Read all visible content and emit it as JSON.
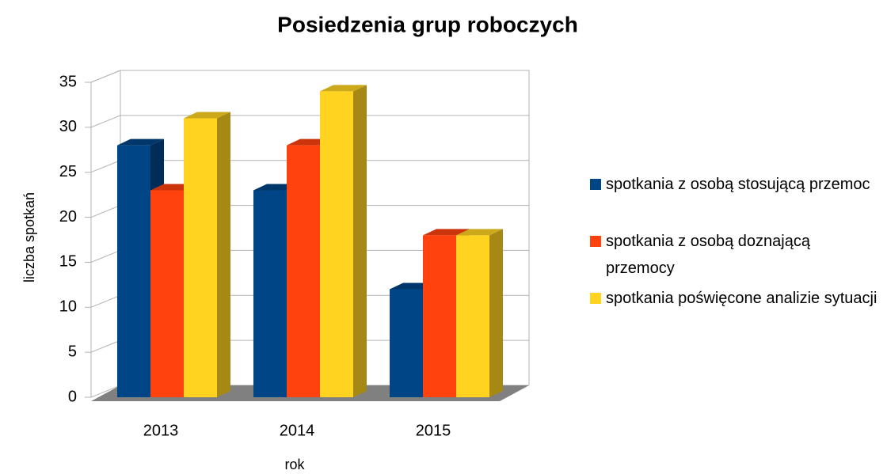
{
  "chart_data": {
    "type": "bar3d",
    "title": "Posiedzenia grup roboczych",
    "x_label": "rok",
    "y_label": "liczba spotkań",
    "categories": [
      "2013",
      "2014",
      "2015"
    ],
    "series": [
      {
        "name": "spotkania z osobą stosującą przemoc",
        "color": "#004586",
        "values": [
          28,
          23,
          12
        ]
      },
      {
        "name": "spotkania z osobą doznającą przemocy",
        "color": "#ff420e",
        "values": [
          23,
          28,
          18
        ]
      },
      {
        "name": "spotkania poświęcone analizie sytuacji",
        "color": "#ffd320",
        "values": [
          31,
          34,
          18
        ]
      }
    ],
    "ylim": [
      0,
      35
    ],
    "yticks": [
      0,
      5,
      10,
      15,
      20,
      25,
      30,
      35
    ],
    "grid": true,
    "legend": "right"
  }
}
